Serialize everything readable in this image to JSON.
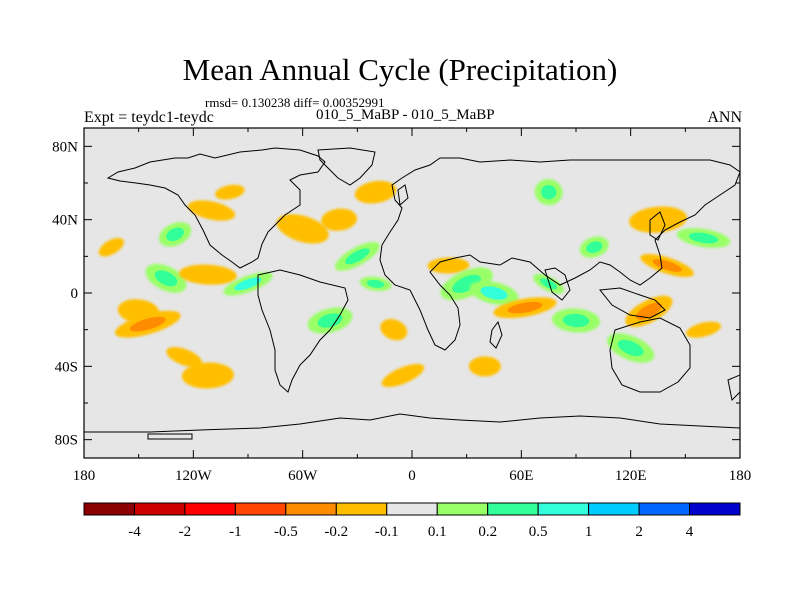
{
  "title": "Mean Annual Cycle (Precipitation)",
  "stats_text": "rmsd= 0.130238 diff= 0.00352991",
  "subtitle": "010_5_MaBP - 010_5_MaBP",
  "experiment_text": "Expt = teydc1-teydc",
  "season": "ANN",
  "colors": {
    "land_bg": "#e6e6e6",
    "palette": [
      "#8b0000",
      "#cc0000",
      "#ff0000",
      "#ff4500",
      "#ff8c00",
      "#ffbf00",
      "#e6e6e6",
      "#99ff66",
      "#33ff99",
      "#33ffdd",
      "#00ccff",
      "#0066ff",
      "#0000cc"
    ]
  },
  "chart_data": {
    "type": "heatmap",
    "title": "Mean Annual Cycle (Precipitation)",
    "variable": "Precipitation difference",
    "x_axis": {
      "range": [
        -180,
        180
      ],
      "ticks": [
        -180,
        -120,
        -60,
        0,
        60,
        120,
        180
      ],
      "tick_labels": [
        "180",
        "120W",
        "60W",
        "0",
        "60E",
        "120E",
        "180"
      ]
    },
    "y_axis": {
      "range": [
        -90,
        90
      ],
      "ticks": [
        80,
        40,
        0,
        -40,
        -80
      ],
      "tick_labels": [
        "80N",
        "40N",
        "0",
        "40S",
        "80S"
      ]
    },
    "colorbar": {
      "levels": [
        -4,
        -2,
        -1,
        -0.5,
        -0.2,
        -0.1,
        0.1,
        0.2,
        0.5,
        1,
        2,
        4
      ],
      "level_labels": [
        "-4",
        "-2",
        "-1",
        "-0.5",
        "-0.2",
        "-0.1",
        "0.1",
        "0.2",
        "0.5",
        "1",
        "2",
        "4"
      ],
      "colors": [
        "#8b0000",
        "#cc0000",
        "#ff0000",
        "#ff4500",
        "#ff8c00",
        "#ffbf00",
        "#e6e6e6",
        "#99ff66",
        "#33ff99",
        "#33ffdd",
        "#00ccff",
        "#0066ff",
        "#0000cc"
      ]
    },
    "anomalies": [
      {
        "lon": -165,
        "lat": 25,
        "value": -0.2
      },
      {
        "lon": -150,
        "lat": -10,
        "value": -0.2
      },
      {
        "lon": -145,
        "lat": -17,
        "value": -0.5
      },
      {
        "lon": -125,
        "lat": -35,
        "value": -0.2
      },
      {
        "lon": -112,
        "lat": -45,
        "value": -0.2
      },
      {
        "lon": -130,
        "lat": 32,
        "value": 0.2
      },
      {
        "lon": -110,
        "lat": 45,
        "value": -0.2
      },
      {
        "lon": -100,
        "lat": 55,
        "value": -0.2
      },
      {
        "lon": -135,
        "lat": 8,
        "value": 0.2
      },
      {
        "lon": -112,
        "lat": 10,
        "value": -0.2
      },
      {
        "lon": -90,
        "lat": 5,
        "value": 0.5
      },
      {
        "lon": -60,
        "lat": 35,
        "value": -0.2
      },
      {
        "lon": -40,
        "lat": 40,
        "value": -0.2
      },
      {
        "lon": -30,
        "lat": 20,
        "value": 0.2
      },
      {
        "lon": -20,
        "lat": 5,
        "value": 0.2
      },
      {
        "lon": -45,
        "lat": -15,
        "value": 0.2
      },
      {
        "lon": -10,
        "lat": -20,
        "value": -0.2
      },
      {
        "lon": 20,
        "lat": 15,
        "value": -0.2
      },
      {
        "lon": 30,
        "lat": 5,
        "value": 0.2
      },
      {
        "lon": 45,
        "lat": 0,
        "value": 0.5
      },
      {
        "lon": 62,
        "lat": -8,
        "value": -0.5
      },
      {
        "lon": 75,
        "lat": 5,
        "value": 0.2
      },
      {
        "lon": 90,
        "lat": -15,
        "value": 0.2
      },
      {
        "lon": 100,
        "lat": 25,
        "value": 0.2
      },
      {
        "lon": 140,
        "lat": 15,
        "value": -0.5
      },
      {
        "lon": 135,
        "lat": 40,
        "value": -0.2
      },
      {
        "lon": 130,
        "lat": -10,
        "value": -0.5
      },
      {
        "lon": 160,
        "lat": 30,
        "value": 0.2
      },
      {
        "lon": 160,
        "lat": -20,
        "value": -0.2
      },
      {
        "lon": 120,
        "lat": -30,
        "value": 0.2
      },
      {
        "lon": 40,
        "lat": -40,
        "value": -0.2
      },
      {
        "lon": -5,
        "lat": -45,
        "value": -0.2
      },
      {
        "lon": 75,
        "lat": 55,
        "value": 0.2
      },
      {
        "lon": -20,
        "lat": 55,
        "value": -0.2
      }
    ]
  }
}
